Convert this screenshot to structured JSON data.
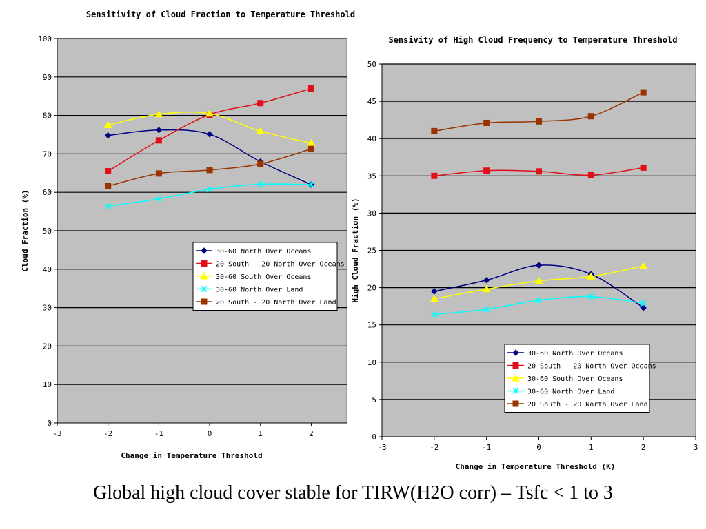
{
  "caption": "Global high cloud cover stable for TIRW(H2O corr) – Tsfc < 1 to 3",
  "colors": {
    "plot_bg": "#c0c0c0",
    "gridline": "#000000",
    "series": [
      "#000080",
      "#e0101a",
      "#ffff00",
      "#00ffff",
      "#993300"
    ]
  },
  "chart_data": [
    {
      "type": "line",
      "title": "Sensitivity of Cloud Fraction to Temperature Threshold",
      "xlabel": "Change in Temperature Threshold",
      "ylabel": "Cloud Fraction (%)",
      "xlim": [
        -3,
        2.7
      ],
      "ylim": [
        0,
        100
      ],
      "xticks": [
        -3,
        -2,
        -1,
        0,
        1,
        2
      ],
      "yticks": [
        0,
        10,
        20,
        30,
        40,
        50,
        60,
        70,
        80,
        90,
        100
      ],
      "grid": "horizontal",
      "legend_position": "center-right",
      "x": [
        -2,
        -1,
        0,
        1,
        2
      ],
      "series": [
        {
          "name": "30-60 North Over Oceans",
          "marker": "diamond",
          "values": [
            74.8,
            76.2,
            75.1,
            68.0,
            62.0
          ]
        },
        {
          "name": "20 South - 20 North Over Oceans",
          "marker": "square",
          "values": [
            65.5,
            73.5,
            80.2,
            83.2,
            87.0
          ]
        },
        {
          "name": "30-60 South Over Oceans",
          "marker": "triangle",
          "values": [
            77.5,
            80.3,
            80.5,
            75.9,
            72.8
          ]
        },
        {
          "name": "30-60 North Over Land",
          "marker": "x",
          "values": [
            56.4,
            58.3,
            60.8,
            62.1,
            62.0
          ]
        },
        {
          "name": "20 South - 20 North Over Land",
          "marker": "square",
          "values": [
            61.6,
            64.9,
            65.8,
            67.4,
            71.3
          ]
        }
      ]
    },
    {
      "type": "line",
      "title": "Sensivity of High Cloud Frequency to Temperature Threshold",
      "xlabel": "Change in Temperature Threshold (K)",
      "ylabel": "High Cloud Fraction (%)",
      "xlim": [
        -3,
        3
      ],
      "ylim": [
        0,
        50
      ],
      "xticks": [
        -3,
        -2,
        -1,
        0,
        1,
        2,
        3
      ],
      "yticks": [
        0,
        5,
        10,
        15,
        20,
        25,
        30,
        35,
        40,
        45,
        50
      ],
      "grid": "horizontal",
      "legend_position": "bottom-right",
      "x": [
        -2,
        -1,
        0,
        1,
        2
      ],
      "series": [
        {
          "name": "30-60 North Over Oceans",
          "marker": "diamond",
          "values": [
            19.5,
            21.0,
            23.0,
            21.8,
            17.3
          ]
        },
        {
          "name": "20 South - 20 North Over Oceans",
          "marker": "square",
          "values": [
            35.0,
            35.7,
            35.6,
            35.1,
            36.1
          ]
        },
        {
          "name": "30-60 South Over Oceans",
          "marker": "triangle",
          "values": [
            18.5,
            19.8,
            20.9,
            21.5,
            22.9
          ]
        },
        {
          "name": "30-60 North Over Land",
          "marker": "x",
          "values": [
            16.4,
            17.1,
            18.3,
            18.8,
            17.9
          ]
        },
        {
          "name": "20 South - 20 North Over Land",
          "marker": "square",
          "values": [
            41.0,
            42.1,
            42.3,
            43.0,
            46.2
          ]
        }
      ]
    }
  ]
}
